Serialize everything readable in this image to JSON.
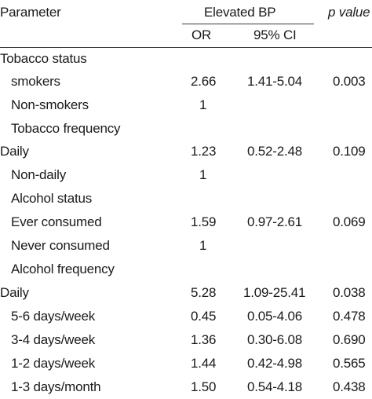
{
  "header": {
    "parameter": "Parameter",
    "group": "Elevated BP",
    "or": "OR",
    "ci": "95% CI",
    "p": "p value"
  },
  "rows": [
    {
      "label": "Tobacco status",
      "or": "",
      "ci": "",
      "p": ""
    },
    {
      "label": "smokers",
      "or": "2.66",
      "ci": "1.41-5.04",
      "p": "0.003"
    },
    {
      "label": "Non-smokers",
      "or": "1",
      "ci": "",
      "p": ""
    },
    {
      "label": "Tobacco frequency",
      "or": "",
      "ci": "",
      "p": ""
    },
    {
      "label": "Daily",
      "or": "1.23",
      "ci": "0.52-2.48",
      "p": "0.109"
    },
    {
      "label": "Non-daily",
      "or": "1",
      "ci": "",
      "p": ""
    },
    {
      "label": "Alcohol status",
      "or": "",
      "ci": "",
      "p": ""
    },
    {
      "label": "Ever consumed",
      "or": "1.59",
      "ci": "0.97-2.61",
      "p": "0.069"
    },
    {
      "label": "Never consumed",
      "or": "1",
      "ci": "",
      "p": ""
    },
    {
      "label": "Alcohol frequency",
      "or": "",
      "ci": "",
      "p": ""
    },
    {
      "label": "Daily",
      "or": "5.28",
      "ci": "1.09-25.41",
      "p": "0.038"
    },
    {
      "label": "5-6 days/week",
      "or": "0.45",
      "ci": "0.05-4.06",
      "p": "0.478"
    },
    {
      "label": "3-4 days/week",
      "or": "1.36",
      "ci": "0.30-6.08",
      "p": "0.690"
    },
    {
      "label": "1-2 days/week",
      "or": "1.44",
      "ci": "0.42-4.98",
      "p": "0.565"
    },
    {
      "label": "1-3 days/month",
      "or": "1.50",
      "ci": "0.54-4.18",
      "p": "0.438"
    }
  ]
}
